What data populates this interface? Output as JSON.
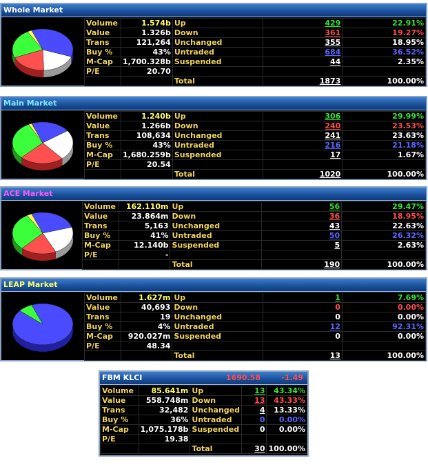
{
  "colors": {
    "whole": "#ffffff",
    "main": "#7fe9ff",
    "ace": "#ff58ff",
    "leap": "#ffff66",
    "fbm": "#ffffff"
  },
  "labels": {
    "volume": "Volume",
    "value": "Value",
    "trans": "Trans",
    "buy": "Buy %",
    "mcap": "M-Cap",
    "pe": "P/E",
    "up": "Up",
    "down": "Down",
    "unchanged": "Unchanged",
    "untraded": "Untraded",
    "suspended": "Suspended",
    "total": "Total"
  },
  "whole": {
    "title": "Whole Market",
    "volume": "1.574b",
    "value": "1.326b",
    "trans": "121,264",
    "buy": "43%",
    "mcap": "1,700.328b",
    "pe": "20.70",
    "up": {
      "count": "429",
      "pct": "22.91%"
    },
    "down": {
      "count": "361",
      "pct": "19.27%"
    },
    "unchanged": {
      "count": "355",
      "pct": "18.95%"
    },
    "untraded": {
      "count": "684",
      "pct": "36.52%"
    },
    "suspended": {
      "count": "44",
      "pct": "2.35%"
    },
    "total": {
      "count": "1873",
      "pct": "100.00%"
    }
  },
  "main": {
    "title": "Main Market",
    "volume": "1.240b",
    "value": "1.266b",
    "trans": "108,634",
    "buy": "43%",
    "mcap": "1,680.259b",
    "pe": "20.54",
    "up": {
      "count": "306",
      "pct": "29.99%"
    },
    "down": {
      "count": "240",
      "pct": "23.53%"
    },
    "unchanged": {
      "count": "241",
      "pct": "23.63%"
    },
    "untraded": {
      "count": "216",
      "pct": "21.18%"
    },
    "suspended": {
      "count": "17",
      "pct": "1.67%"
    },
    "total": {
      "count": "1020",
      "pct": "100.00%"
    }
  },
  "ace": {
    "title": "ACE Market",
    "volume": "162.110m",
    "value": "23.864m",
    "trans": "5,163",
    "buy": "41%",
    "mcap": "12.140b",
    "pe": "-",
    "up": {
      "count": "56",
      "pct": "29.47%"
    },
    "down": {
      "count": "36",
      "pct": "18.95%"
    },
    "unchanged": {
      "count": "43",
      "pct": "22.63%"
    },
    "untraded": {
      "count": "50",
      "pct": "26.32%"
    },
    "suspended": {
      "count": "5",
      "pct": "2.63%"
    },
    "total": {
      "count": "190",
      "pct": "100.00%"
    }
  },
  "leap": {
    "title": "LEAP Market",
    "volume": "1.627m",
    "value": "40,693",
    "trans": "19",
    "buy": "4%",
    "mcap": "920.027m",
    "pe": "48.34",
    "up": {
      "count": "1",
      "pct": "7.69%"
    },
    "down": {
      "count": "0",
      "pct": "0.00%"
    },
    "unchanged": {
      "count": "0",
      "pct": "0.00%"
    },
    "untraded": {
      "count": "12",
      "pct": "92.31%"
    },
    "suspended": {
      "count": "0",
      "pct": "0.00%"
    },
    "total": {
      "count": "13",
      "pct": "100.00%"
    }
  },
  "fbm": {
    "title": "FBM KLCI",
    "index": "1690.58",
    "change": "-1.49",
    "volume": "85.641m",
    "value": "558.748m",
    "trans": "32,482",
    "buy": "36%",
    "mcap": "1,075.178b",
    "pe": "19.38",
    "up": {
      "count": "13",
      "pct": "43.34%"
    },
    "down": {
      "count": "13",
      "pct": "43.33%"
    },
    "unchanged": {
      "count": "4",
      "pct": "13.33%"
    },
    "untraded": {
      "count": "0",
      "pct": "0.00%"
    },
    "suspended": {
      "count": "0",
      "pct": "0.00%"
    },
    "total": {
      "count": "30",
      "pct": "100.00%"
    }
  }
}
